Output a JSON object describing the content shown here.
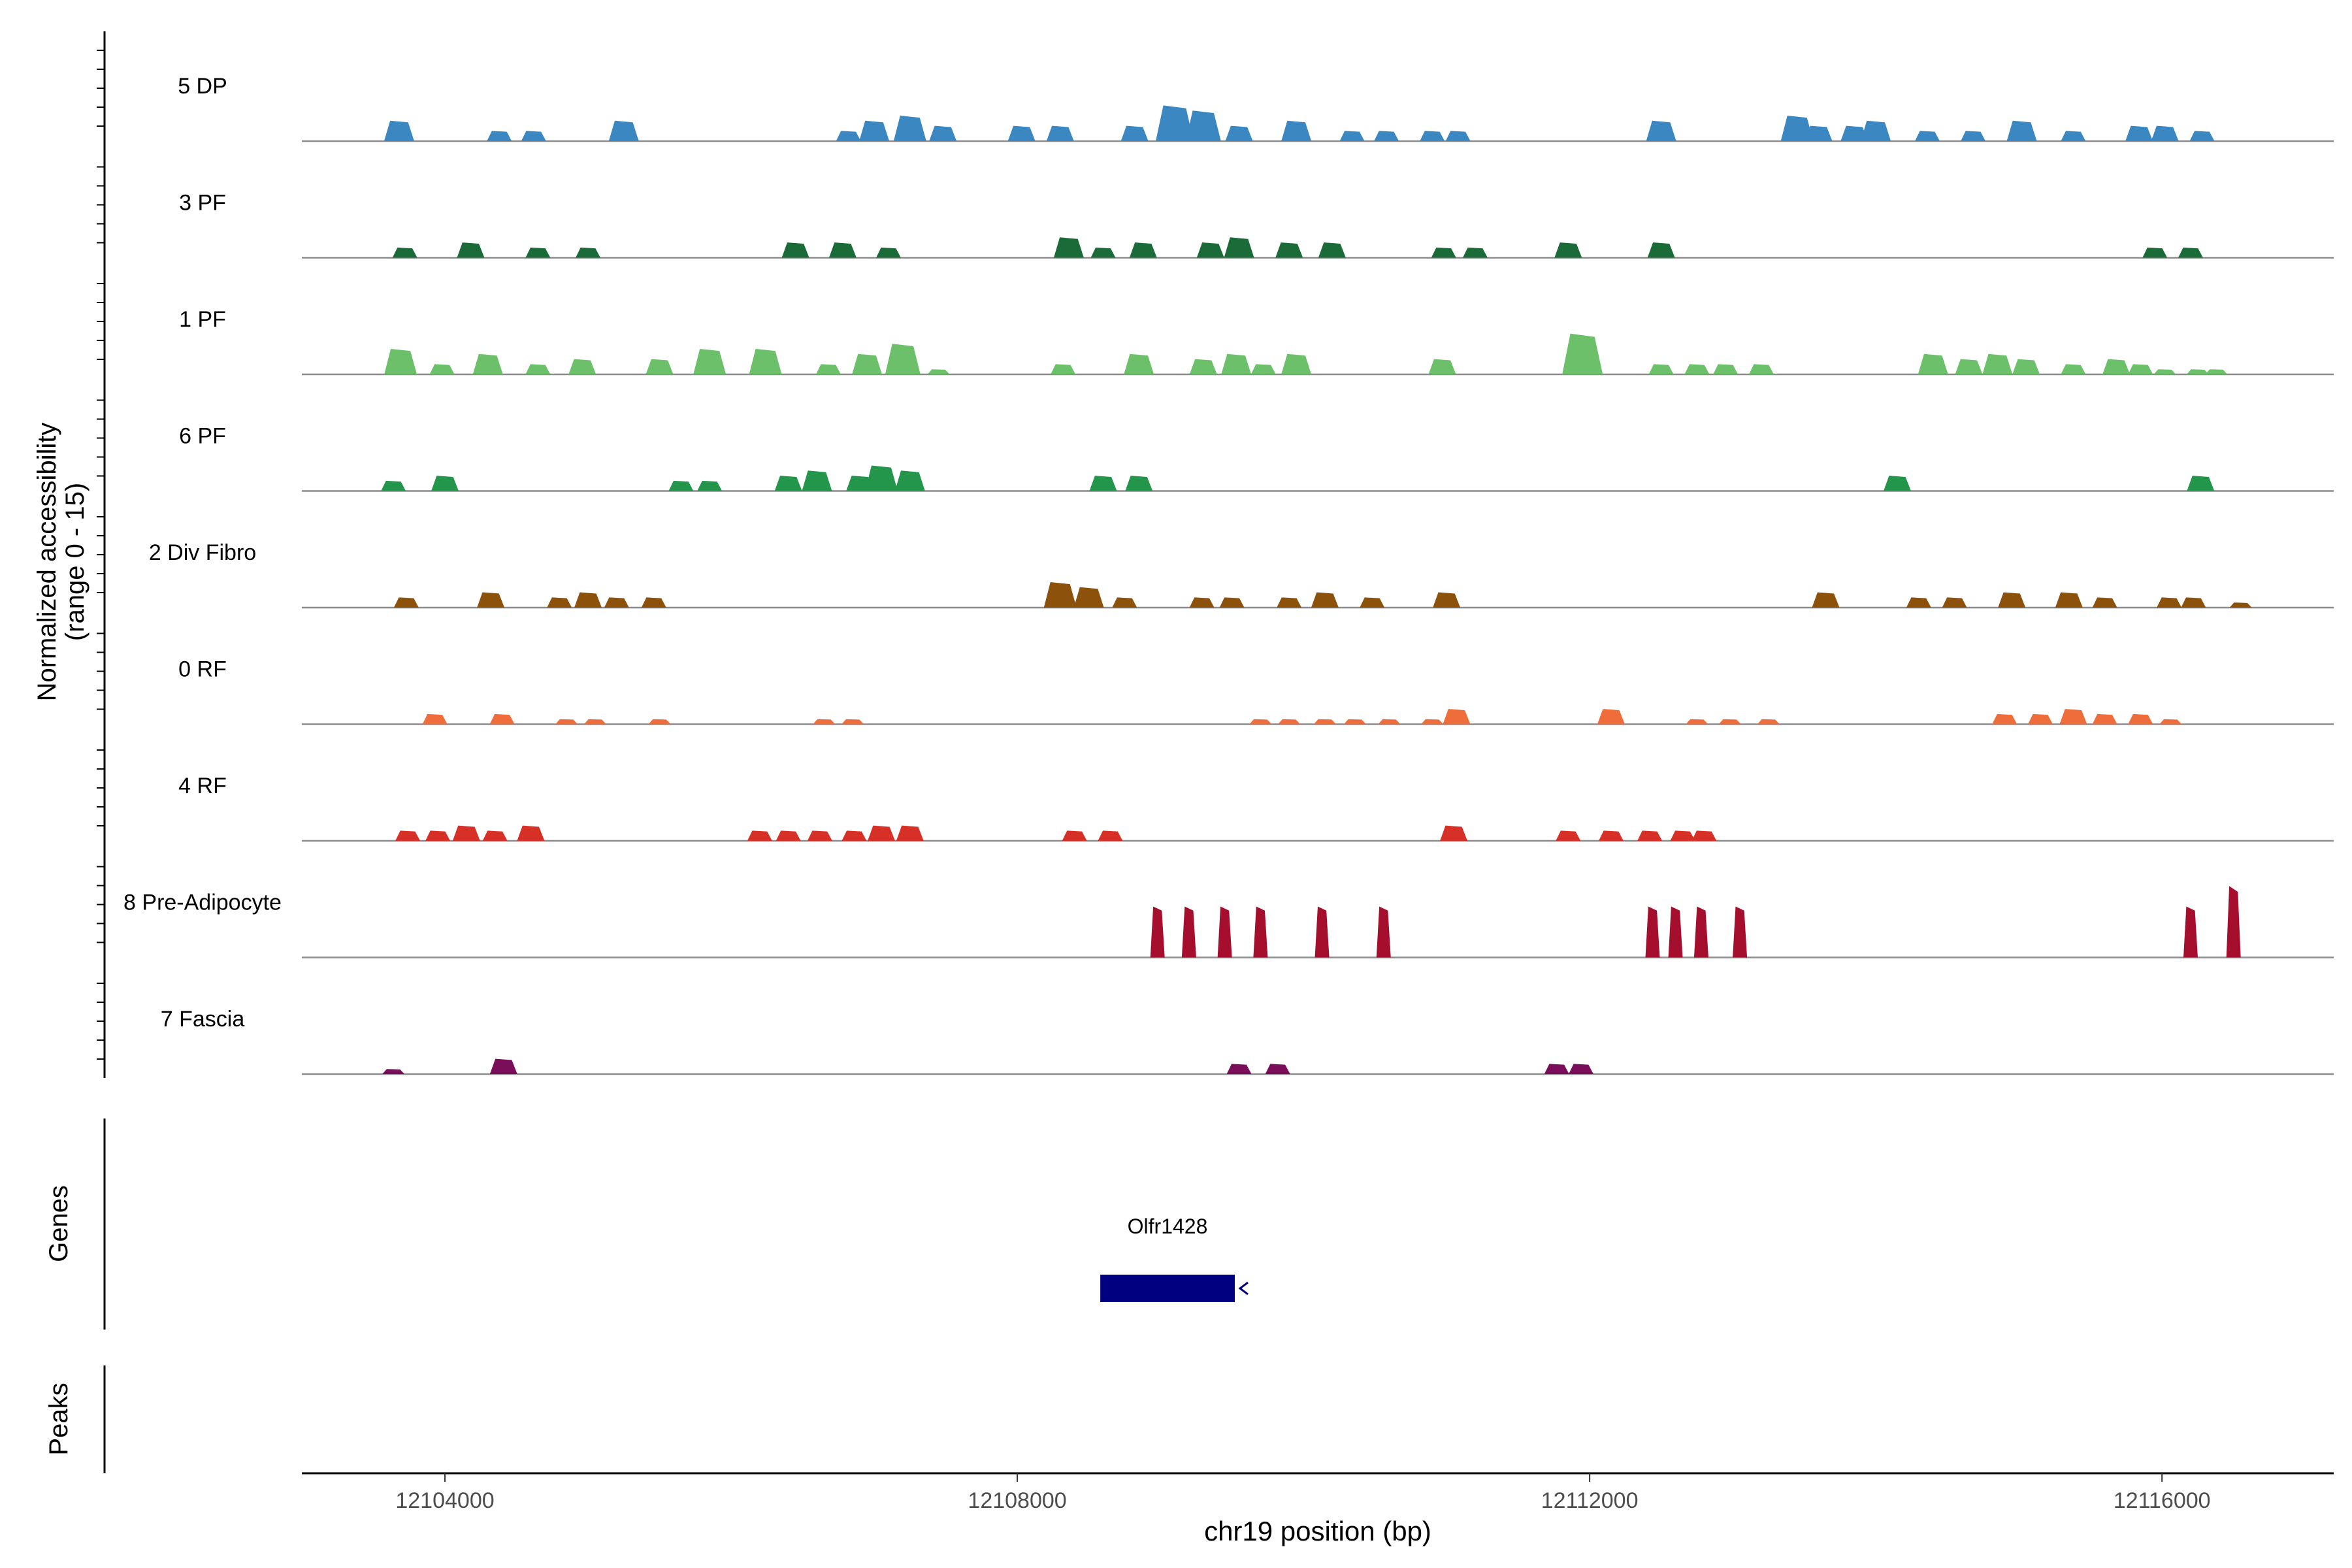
{
  "chart_data": {
    "type": "area",
    "title": "",
    "ylabel": "Normalized accessibility",
    "ylabel_range": "(range 0 - 15)",
    "xlabel": "chr19 position (bp)",
    "xlim": [
      12103000,
      12117200
    ],
    "ylim": [
      0,
      15
    ],
    "x_ticks": [
      12104000,
      12108000,
      12112000,
      12116000
    ],
    "tracks": [
      {
        "name": "5 DP",
        "color": "#3a87c2",
        "peaks": [
          [
            12103680,
            4
          ],
          [
            12104380,
            2
          ],
          [
            12104620,
            2
          ],
          [
            12105250,
            4
          ],
          [
            12106820,
            2
          ],
          [
            12107000,
            4
          ],
          [
            12107250,
            5
          ],
          [
            12107480,
            3
          ],
          [
            12108030,
            3
          ],
          [
            12108300,
            3
          ],
          [
            12108820,
            3
          ],
          [
            12109100,
            7
          ],
          [
            12109300,
            6
          ],
          [
            12109550,
            3
          ],
          [
            12109950,
            4
          ],
          [
            12110340,
            2
          ],
          [
            12110580,
            2
          ],
          [
            12110900,
            2
          ],
          [
            12111080,
            2
          ],
          [
            12112500,
            4
          ],
          [
            12113450,
            5
          ],
          [
            12113600,
            3
          ],
          [
            12113850,
            3
          ],
          [
            12114000,
            4
          ],
          [
            12114360,
            2
          ],
          [
            12114680,
            2
          ],
          [
            12115020,
            4
          ],
          [
            12115380,
            2
          ],
          [
            12115840,
            3
          ],
          [
            12116020,
            3
          ],
          [
            12116280,
            2
          ]
        ]
      },
      {
        "name": "3 PF",
        "color": "#1a6b38",
        "peaks": [
          [
            12103720,
            2
          ],
          [
            12104180,
            3
          ],
          [
            12104650,
            2
          ],
          [
            12105000,
            2
          ],
          [
            12106450,
            3
          ],
          [
            12106780,
            3
          ],
          [
            12107100,
            2
          ],
          [
            12108360,
            4
          ],
          [
            12108600,
            2
          ],
          [
            12108880,
            3
          ],
          [
            12109350,
            3
          ],
          [
            12109550,
            4
          ],
          [
            12109900,
            3
          ],
          [
            12110200,
            3
          ],
          [
            12110980,
            2
          ],
          [
            12111200,
            2
          ],
          [
            12111850,
            3
          ],
          [
            12112500,
            3
          ],
          [
            12115950,
            2
          ],
          [
            12116200,
            2
          ]
        ]
      },
      {
        "name": "1 PF",
        "color": "#6cc06a",
        "peaks": [
          [
            12103690,
            5
          ],
          [
            12103980,
            2
          ],
          [
            12104300,
            4
          ],
          [
            12104650,
            2
          ],
          [
            12104960,
            3
          ],
          [
            12105500,
            3
          ],
          [
            12105850,
            5
          ],
          [
            12106240,
            5
          ],
          [
            12106680,
            2
          ],
          [
            12106950,
            4
          ],
          [
            12107200,
            6
          ],
          [
            12107450,
            1
          ],
          [
            12108320,
            2
          ],
          [
            12108850,
            4
          ],
          [
            12109300,
            3
          ],
          [
            12109530,
            4
          ],
          [
            12109720,
            2
          ],
          [
            12109950,
            4
          ],
          [
            12110970,
            3
          ],
          [
            12111950,
            8
          ],
          [
            12112500,
            2
          ],
          [
            12112750,
            2
          ],
          [
            12112950,
            2
          ],
          [
            12113200,
            2
          ],
          [
            12114400,
            4
          ],
          [
            12114650,
            3
          ],
          [
            12114850,
            4
          ],
          [
            12115050,
            3
          ],
          [
            12115380,
            2
          ],
          [
            12115680,
            3
          ],
          [
            12115850,
            2
          ],
          [
            12116020,
            1
          ],
          [
            12116250,
            1
          ],
          [
            12116380,
            1
          ]
        ]
      },
      {
        "name": "6 PF",
        "color": "#23964b",
        "peaks": [
          [
            12103640,
            2
          ],
          [
            12104000,
            3
          ],
          [
            12105650,
            2
          ],
          [
            12105850,
            2
          ],
          [
            12106400,
            3
          ],
          [
            12106600,
            4
          ],
          [
            12106900,
            3
          ],
          [
            12107050,
            5
          ],
          [
            12107250,
            4
          ],
          [
            12108600,
            3
          ],
          [
            12108850,
            3
          ],
          [
            12114150,
            3
          ],
          [
            12116270,
            3
          ]
        ]
      },
      {
        "name": "2 Div Fibro",
        "color": "#8c510a",
        "peaks": [
          [
            12103730,
            2
          ],
          [
            12104320,
            3
          ],
          [
            12104800,
            2
          ],
          [
            12105000,
            3
          ],
          [
            12105200,
            2
          ],
          [
            12105460,
            2
          ],
          [
            12108300,
            5
          ],
          [
            12108500,
            4
          ],
          [
            12108750,
            2
          ],
          [
            12109290,
            2
          ],
          [
            12109500,
            2
          ],
          [
            12109900,
            2
          ],
          [
            12110150,
            3
          ],
          [
            12110480,
            2
          ],
          [
            12111000,
            3
          ],
          [
            12113650,
            3
          ],
          [
            12114300,
            2
          ],
          [
            12114550,
            2
          ],
          [
            12114950,
            3
          ],
          [
            12115350,
            3
          ],
          [
            12115600,
            2
          ],
          [
            12116050,
            2
          ],
          [
            12116220,
            2
          ],
          [
            12116550,
            1
          ]
        ]
      },
      {
        "name": "0 RF",
        "color": "#ef6c3b",
        "peaks": [
          [
            12103930,
            2
          ],
          [
            12104400,
            2
          ],
          [
            12104850,
            1
          ],
          [
            12105050,
            1
          ],
          [
            12105500,
            1
          ],
          [
            12106650,
            1
          ],
          [
            12106850,
            1
          ],
          [
            12109700,
            1
          ],
          [
            12109900,
            1
          ],
          [
            12110150,
            1
          ],
          [
            12110360,
            1
          ],
          [
            12110600,
            1
          ],
          [
            12110900,
            1
          ],
          [
            12111070,
            3
          ],
          [
            12112150,
            3
          ],
          [
            12112750,
            1
          ],
          [
            12112980,
            1
          ],
          [
            12113250,
            1
          ],
          [
            12114900,
            2
          ],
          [
            12115150,
            2
          ],
          [
            12115380,
            3
          ],
          [
            12115600,
            2
          ],
          [
            12115850,
            2
          ],
          [
            12116060,
            1
          ]
        ]
      },
      {
        "name": "4 RF",
        "color": "#d73027",
        "peaks": [
          [
            12103740,
            2
          ],
          [
            12103950,
            2
          ],
          [
            12104150,
            3
          ],
          [
            12104350,
            2
          ],
          [
            12104600,
            3
          ],
          [
            12106200,
            2
          ],
          [
            12106400,
            2
          ],
          [
            12106620,
            2
          ],
          [
            12106860,
            2
          ],
          [
            12107050,
            3
          ],
          [
            12107250,
            3
          ],
          [
            12108400,
            2
          ],
          [
            12108650,
            2
          ],
          [
            12111050,
            3
          ],
          [
            12111850,
            2
          ],
          [
            12112150,
            2
          ],
          [
            12112420,
            2
          ],
          [
            12112650,
            2
          ],
          [
            12112800,
            2
          ]
        ]
      },
      {
        "name": "8 Pre-Adipocyte",
        "color": "#a50f2d",
        "peaks": [
          [
            12108980,
            10
          ],
          [
            12109200,
            10
          ],
          [
            12109450,
            10
          ],
          [
            12109700,
            10
          ],
          [
            12110130,
            10
          ],
          [
            12110560,
            10
          ],
          [
            12112440,
            10
          ],
          [
            12112600,
            10
          ],
          [
            12112780,
            10
          ],
          [
            12113050,
            10
          ],
          [
            12116200,
            10
          ],
          [
            12116500,
            14
          ]
        ]
      },
      {
        "name": "7 Fascia",
        "color": "#7a0e5b",
        "peaks": [
          [
            12103640,
            1
          ],
          [
            12104410,
            3
          ],
          [
            12109550,
            2
          ],
          [
            12109820,
            2
          ],
          [
            12111770,
            2
          ],
          [
            12111940,
            2
          ]
        ]
      }
    ],
    "genes": [
      {
        "name": "Olfr1428",
        "start": 12108580,
        "end": 12109520,
        "strand": "-"
      }
    ],
    "genes_label": "Genes",
    "peaks_label": "Peaks"
  }
}
